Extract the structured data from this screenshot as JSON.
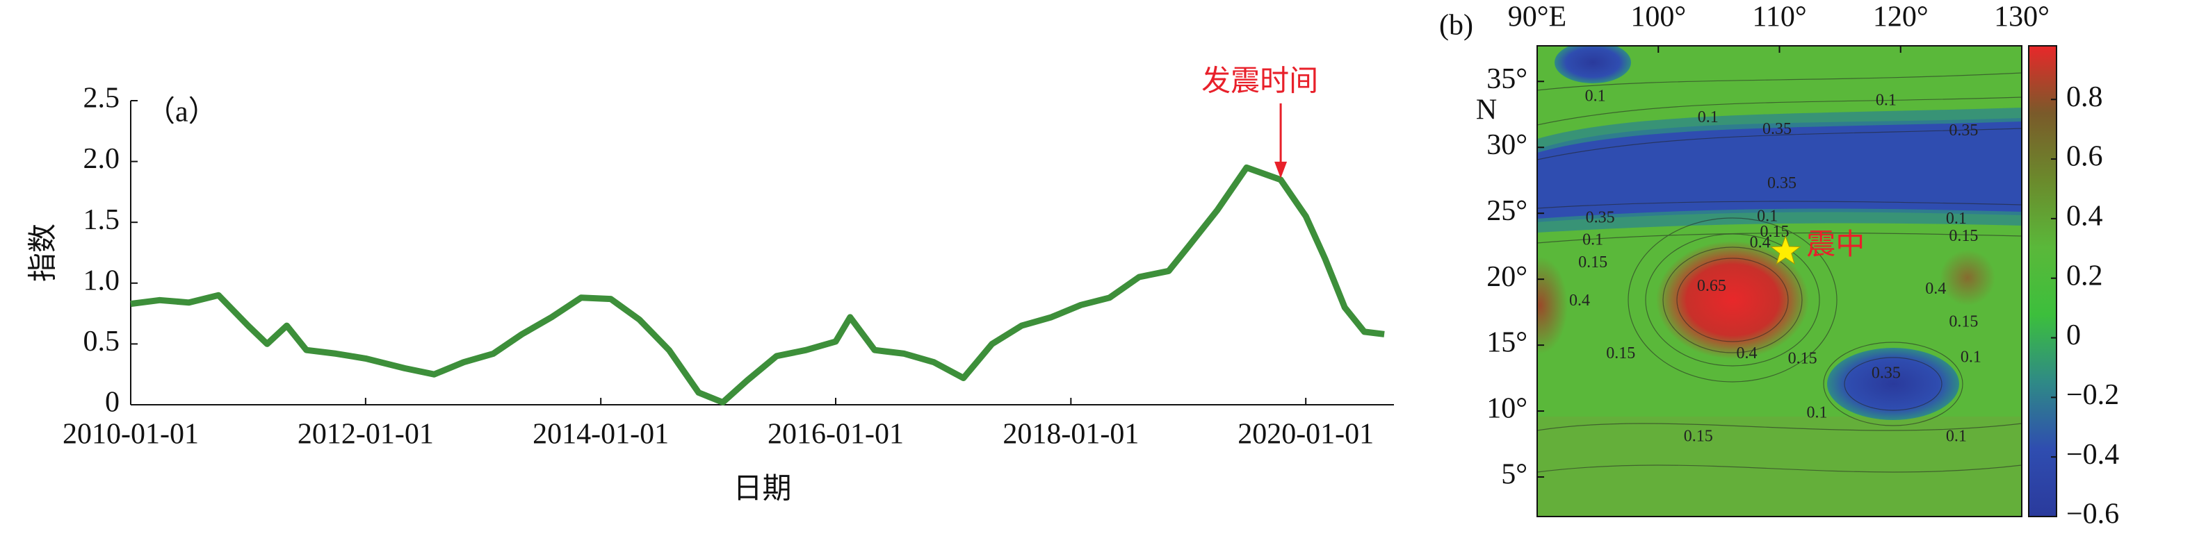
{
  "chart_data": [
    {
      "type": "line",
      "panel_label": "（a）",
      "xlabel": "日期",
      "ylabel": "指数",
      "x": [
        "2010-01-01",
        "2010-04-01",
        "2010-07-01",
        "2010-10-01",
        "2011-01-01",
        "2011-03-01",
        "2011-05-01",
        "2011-07-01",
        "2011-10-01",
        "2012-01-01",
        "2012-05-01",
        "2012-08-01",
        "2012-11-01",
        "2013-02-01",
        "2013-05-01",
        "2013-08-01",
        "2013-11-01",
        "2014-02-01",
        "2014-05-01",
        "2014-08-01",
        "2014-11-01",
        "2015-01-15",
        "2015-04-01",
        "2015-07-01",
        "2015-10-01",
        "2016-01-01",
        "2016-02-15",
        "2016-05-01",
        "2016-08-01",
        "2016-11-01",
        "2017-02-01",
        "2017-05-01",
        "2017-08-01",
        "2017-11-01",
        "2018-02-01",
        "2018-05-01",
        "2018-08-01",
        "2018-11-01",
        "2019-01-01",
        "2019-04-01",
        "2019-07-01",
        "2019-10-15",
        "2020-01-01",
        "2020-03-01",
        "2020-05-01",
        "2020-07-01",
        "2020-09-01"
      ],
      "series": [
        {
          "name": "指数",
          "color": "#3d8f3a",
          "values": [
            0.83,
            0.86,
            0.84,
            0.9,
            0.65,
            0.5,
            0.65,
            0.45,
            0.42,
            0.38,
            0.3,
            0.25,
            0.35,
            0.42,
            0.58,
            0.72,
            0.88,
            0.87,
            0.7,
            0.45,
            0.1,
            0.02,
            0.2,
            0.4,
            0.45,
            0.52,
            0.72,
            0.45,
            0.42,
            0.35,
            0.22,
            0.5,
            0.65,
            0.72,
            0.82,
            0.88,
            1.05,
            1.1,
            1.3,
            1.6,
            1.95,
            1.85,
            1.55,
            1.2,
            0.8,
            0.6,
            0.58
          ]
        }
      ],
      "xlim": [
        "2010-01-01",
        "2020-10-01"
      ],
      "xticks": [
        "2010-01-01",
        "2012-01-01",
        "2014-01-01",
        "2016-01-01",
        "2018-01-01",
        "2020-01-01"
      ],
      "ylim": [
        0,
        2.5
      ],
      "yticks": [
        0,
        0.5,
        {
          "value": 1,
          "label": "1.0"
        },
        1.5,
        {
          "value": 2,
          "label": "2.0"
        },
        2.5
      ],
      "annotation": {
        "text": "发震时间",
        "x": "2019-10-15",
        "y": 1.85,
        "color": "#e8202a"
      }
    },
    {
      "type": "contour",
      "panel_label": "(b)",
      "ylabel": "N",
      "xlim": [
        90,
        130
      ],
      "ylim": [
        2,
        37.7
      ],
      "xticks": [
        {
          "value": 90,
          "label": "90°E"
        },
        {
          "value": 100,
          "label": "100°"
        },
        {
          "value": 110,
          "label": "110°"
        },
        {
          "value": 120,
          "label": "120°"
        },
        {
          "value": 130,
          "label": "130°"
        }
      ],
      "yticks": [
        {
          "value": 5,
          "label": "5°"
        },
        {
          "value": 10,
          "label": "10°"
        },
        {
          "value": 15,
          "label": "15°"
        },
        {
          "value": 20,
          "label": "20°"
        },
        {
          "value": 25,
          "label": "25°"
        },
        {
          "value": 30,
          "label": "30°"
        },
        {
          "value": 35,
          "label": "35°"
        }
      ],
      "contour_labels": [
        {
          "value": 0.1,
          "lon": 94.8,
          "lat": 33.8
        },
        {
          "value": 0.1,
          "lon": 104.1,
          "lat": 32.2
        },
        {
          "value": 0.35,
          "lon": 109.8,
          "lat": 31.3
        },
        {
          "value": 0.1,
          "lon": 118.8,
          "lat": 33.5
        },
        {
          "value": 0.35,
          "lon": 125.2,
          "lat": 31.2
        },
        {
          "value": 0.35,
          "lon": 110.2,
          "lat": 27.2
        },
        {
          "value": 0.35,
          "lon": 95.2,
          "lat": 24.6
        },
        {
          "value": 0.1,
          "lon": 94.6,
          "lat": 22.9
        },
        {
          "value": 0.15,
          "lon": 94.6,
          "lat": 21.2
        },
        {
          "value": 0.1,
          "lon": 109,
          "lat": 24.7
        },
        {
          "value": 0.15,
          "lon": 109.6,
          "lat": 23.5
        },
        {
          "value": 0.4,
          "lon": 108.4,
          "lat": 22.7
        },
        {
          "value": 0.65,
          "lon": 104.4,
          "lat": 19.4
        },
        {
          "value": 0.4,
          "lon": 93.5,
          "lat": 18.3
        },
        {
          "value": 0.15,
          "lon": 96.9,
          "lat": 14.3
        },
        {
          "value": 0.4,
          "lon": 107.3,
          "lat": 14.3
        },
        {
          "value": 0.15,
          "lon": 111.9,
          "lat": 13.9
        },
        {
          "value": 0.35,
          "lon": 118.8,
          "lat": 12.8
        },
        {
          "value": 0.1,
          "lon": 113.1,
          "lat": 9.8
        },
        {
          "value": 0.15,
          "lon": 103.3,
          "lat": 8
        },
        {
          "value": 0.1,
          "lon": 124.6,
          "lat": 8
        },
        {
          "value": 0.4,
          "lon": 122.9,
          "lat": 19.2
        },
        {
          "value": 0.15,
          "lon": 125.2,
          "lat": 16.7
        },
        {
          "value": 0.1,
          "lon": 125.8,
          "lat": 14
        },
        {
          "value": 0.1,
          "lon": 124.6,
          "lat": 24.5
        },
        {
          "value": 0.15,
          "lon": 125.2,
          "lat": 23.2
        }
      ],
      "epicenter": {
        "label": "震中",
        "lon": 110.5,
        "lat": 22.1,
        "color": "#ffee00",
        "label_color": "#e8202a"
      },
      "colorbar": {
        "lim": [
          -0.6,
          0.98
        ],
        "ticks": [
          {
            "value": -0.6,
            "label": "−0.6"
          },
          {
            "value": -0.4,
            "label": "−0.4"
          },
          {
            "value": -0.2,
            "label": "−0.2"
          },
          0,
          0.2,
          0.4,
          0.6,
          0.8
        ],
        "colors": [
          "#2a3a9c",
          "#2f4db0",
          "#2f8a86",
          "#3cbf3c",
          "#5ab83a",
          "#6b8a2c",
          "#7a5a2a",
          "#e8282a"
        ]
      }
    }
  ]
}
